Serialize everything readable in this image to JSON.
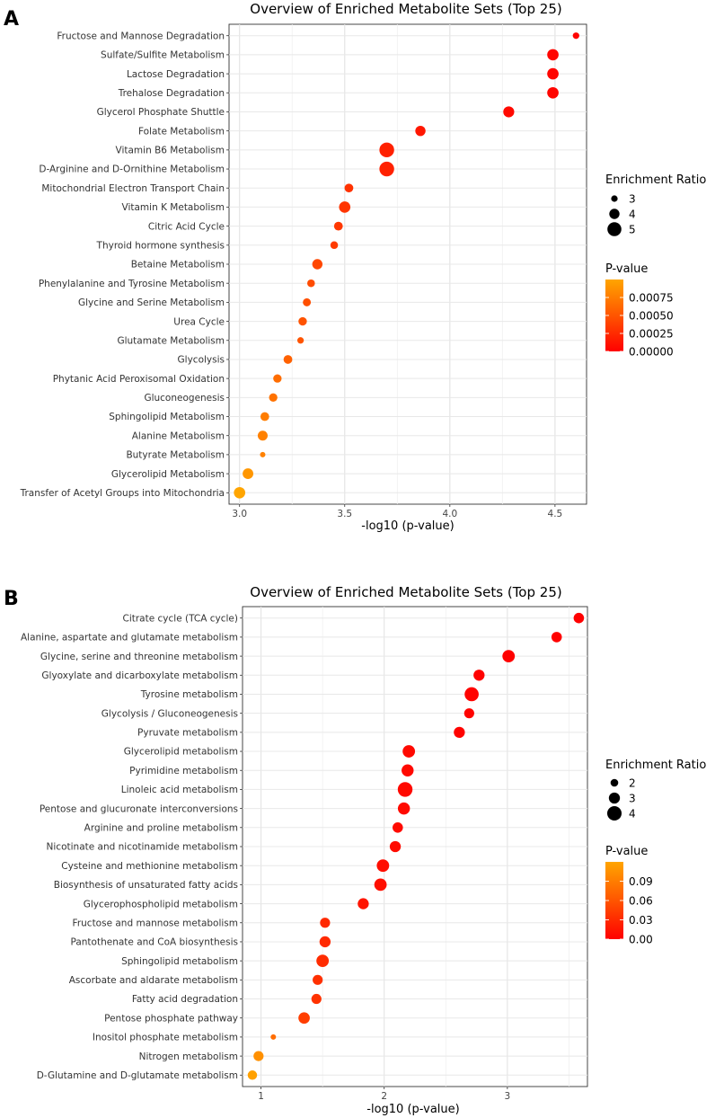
{
  "chart_data": [
    {
      "type": "scatter",
      "panel_label": "A",
      "title": "Overview of Enriched Metabolite Sets (Top 25)",
      "xlabel": "-log10 (p-value)",
      "ylabel": "",
      "xlim": [
        2.95,
        4.65
      ],
      "xticks": [
        3.0,
        3.5,
        4.0,
        4.5
      ],
      "xtick_labels": [
        "3.0",
        "3.5",
        "4.0",
        "4.5"
      ],
      "grid": true,
      "legend_position": "right",
      "size_legend": {
        "title": "Enrichment Ratio",
        "values": [
          3,
          4,
          5
        ],
        "labels": [
          "3",
          "4",
          "5"
        ]
      },
      "color_legend": {
        "title": "P-value",
        "range": [
          0,
          0.001
        ],
        "ticks": [
          0,
          0.00025,
          0.0005,
          0.00075
        ],
        "labels": [
          "0.00000",
          "0.00025",
          "0.00050",
          "0.00075"
        ]
      },
      "categories": [
        "Fructose and Mannose Degradation",
        "Sulfate/Sulfite Metabolism",
        "Lactose Degradation",
        "Trehalose Degradation",
        "Glycerol Phosphate Shuttle",
        "Folate Metabolism",
        "Vitamin B6 Metabolism",
        "D-Arginine and D-Ornithine Metabolism",
        "Mitochondrial Electron Transport Chain",
        "Vitamin K Metabolism",
        "Citric Acid Cycle",
        "Thyroid hormone synthesis",
        "Betaine Metabolism",
        "Phenylalanine and Tyrosine Metabolism",
        "Glycine and Serine Metabolism",
        "Urea Cycle",
        "Glutamate Metabolism",
        "Glycolysis",
        "Phytanic Acid Peroxisomal Oxidation",
        "Gluconeogenesis",
        "Sphingolipid Metabolism",
        "Alanine Metabolism",
        "Butyrate Metabolism",
        "Glycerolipid Metabolism",
        "Transfer of Acetyl Groups into Mitochondria"
      ],
      "x": [
        4.6,
        4.49,
        4.49,
        4.49,
        4.28,
        3.86,
        3.7,
        3.7,
        3.52,
        3.5,
        3.47,
        3.45,
        3.37,
        3.34,
        3.32,
        3.3,
        3.29,
        3.23,
        3.18,
        3.16,
        3.12,
        3.11,
        3.11,
        3.04,
        3.0
      ],
      "enrichment_ratio": [
        3.0,
        4.3,
        4.3,
        4.3,
        4.2,
        4.0,
        5.2,
        5.2,
        3.6,
        4.3,
        3.6,
        3.3,
        4.0,
        3.3,
        3.4,
        3.5,
        3.0,
        3.6,
        3.5,
        3.5,
        3.6,
        3.9,
        2.7,
        4.1,
        4.3
      ],
      "p_value": [
        2.5e-05,
        3.2e-05,
        3.2e-05,
        3.2e-05,
        5.2e-05,
        0.00014,
        0.0002,
        0.0002,
        0.0003,
        0.00032,
        0.00034,
        0.00036,
        0.00043,
        0.00046,
        0.00048,
        0.0005,
        0.00051,
        0.00059,
        0.00066,
        0.00069,
        0.00076,
        0.00078,
        0.00078,
        0.00091,
        0.001
      ]
    },
    {
      "type": "scatter",
      "panel_label": "B",
      "title": "Overview of Enriched Metabolite Sets (Top 25)",
      "xlabel": "-log10 (p-value)",
      "ylabel": "",
      "xlim": [
        0.85,
        3.65
      ],
      "xticks": [
        1,
        2,
        3
      ],
      "xtick_labels": [
        "1",
        "2",
        "3"
      ],
      "grid": true,
      "legend_position": "right",
      "size_legend": {
        "title": "Enrichment Ratio",
        "values": [
          2,
          3,
          4
        ],
        "labels": [
          "2",
          "3",
          "4"
        ]
      },
      "color_legend": {
        "title": "P-value",
        "range": [
          0,
          0.12
        ],
        "ticks": [
          0,
          0.03,
          0.06,
          0.09
        ],
        "labels": [
          "0.00",
          "0.03",
          "0.06",
          "0.09"
        ]
      },
      "categories": [
        "Citrate cycle (TCA cycle)",
        "Alanine, aspartate and glutamate metabolism",
        "Glycine, serine and threonine metabolism",
        "Glyoxylate and dicarboxylate metabolism",
        "Tyrosine metabolism",
        "Glycolysis / Gluconeogenesis",
        "Pyruvate metabolism",
        "Glycerolipid metabolism",
        "Pyrimidine metabolism",
        "Linoleic acid metabolism",
        "Pentose and glucuronate interconversions",
        "Arginine and proline metabolism",
        "Nicotinate and nicotinamide metabolism",
        "Cysteine and methionine metabolism",
        "Biosynthesis of unsaturated fatty acids",
        "Glycerophospholipid metabolism",
        "Fructose and mannose metabolism",
        "Pantothenate and CoA biosynthesis",
        "Sphingolipid metabolism",
        "Ascorbate and aldarate metabolism",
        "Fatty acid degradation",
        "Pentose phosphate pathway",
        "Inositol phosphate metabolism",
        "Nitrogen metabolism",
        "D-Glutamine and D-glutamate metabolism"
      ],
      "x": [
        3.58,
        3.4,
        3.01,
        2.77,
        2.71,
        2.69,
        2.61,
        2.2,
        2.19,
        2.17,
        2.16,
        2.11,
        2.09,
        1.99,
        1.97,
        1.83,
        1.52,
        1.52,
        1.5,
        1.46,
        1.45,
        1.35,
        1.1,
        0.98,
        0.93
      ],
      "enrichment_ratio": [
        2.8,
        2.8,
        3.4,
        3.0,
        3.9,
        2.7,
        3.0,
        3.4,
        3.3,
        4.1,
        3.3,
        2.8,
        3.0,
        3.4,
        3.4,
        3.0,
        2.7,
        3.0,
        3.4,
        2.7,
        2.7,
        3.1,
        1.3,
        2.7,
        2.5
      ],
      "p_value": [
        0.0003,
        0.0004,
        0.001,
        0.0017,
        0.002,
        0.002,
        0.0025,
        0.0063,
        0.0065,
        0.0068,
        0.007,
        0.0078,
        0.0081,
        0.01,
        0.011,
        0.015,
        0.03,
        0.03,
        0.032,
        0.035,
        0.036,
        0.045,
        0.079,
        0.105,
        0.117
      ]
    }
  ]
}
